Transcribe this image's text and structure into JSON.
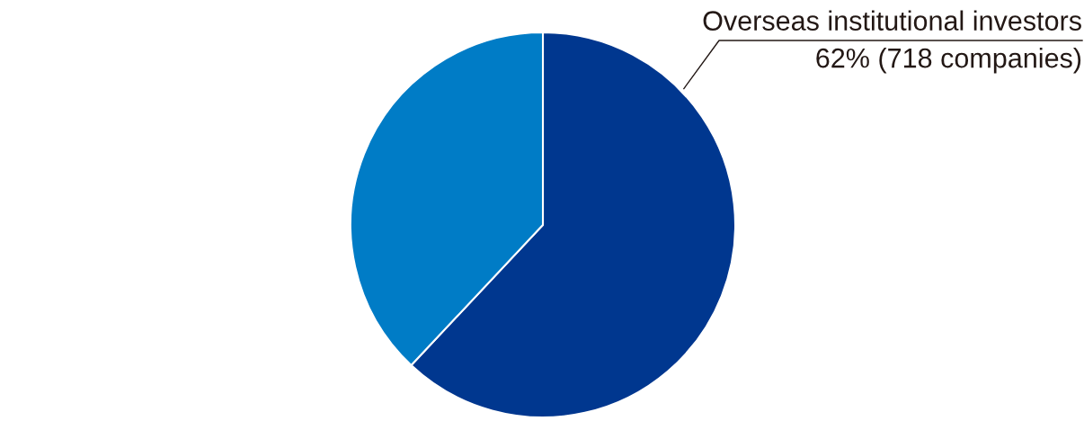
{
  "chart_data": {
    "type": "pie",
    "categories": [
      "Overseas institutional investors",
      null
    ],
    "values": [
      62,
      38
    ],
    "colors": [
      "#00378f",
      "#007cc6"
    ],
    "value_labels": [
      "62% (718 companies)",
      null
    ]
  }
}
